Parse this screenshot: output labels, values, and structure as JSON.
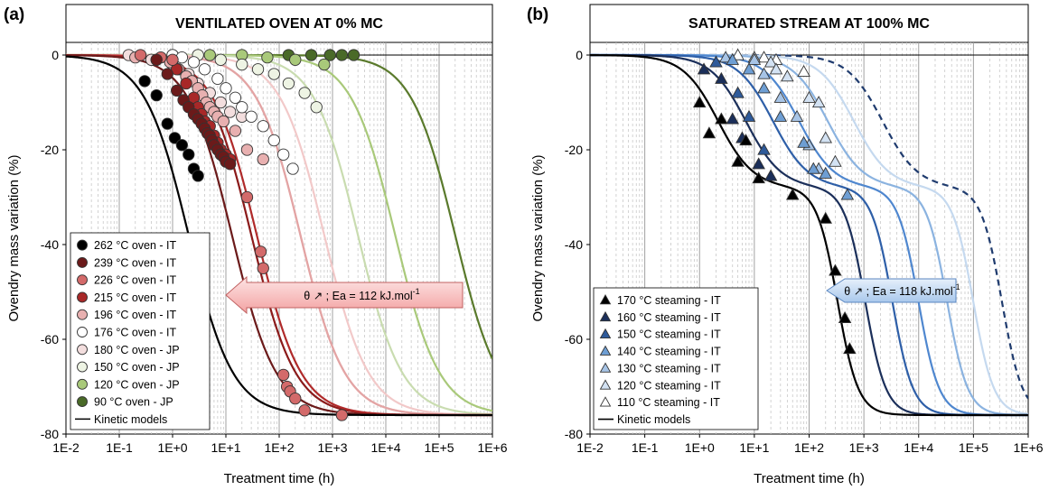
{
  "chart_data": [
    {
      "type": "scatter",
      "panel_label": "(a)",
      "title": "VENTILATED OVEN AT 0% MC",
      "xlabel": "Treatment time (h)",
      "ylabel": "Ovendry mass variation (%)",
      "x_scale": "log",
      "xlim": [
        0.01,
        1000000
      ],
      "ylim": [
        -80,
        0
      ],
      "x_ticks": [
        "1E-2",
        "1E-1",
        "1E+0",
        "1E+1",
        "1E+2",
        "1E+3",
        "1E+4",
        "1E+5",
        "1E+6"
      ],
      "y_ticks": [
        "0",
        "-20",
        "-40",
        "-60",
        "-80"
      ],
      "grid": "vertical minor dashed, major solid",
      "legend_position": "bottom-left",
      "annotation": {
        "text_main": "θ ↗ ; Ea = 112 kJ.mol",
        "text_sup": "-1",
        "direction": "left"
      },
      "models_label": "Kinetic models",
      "series": [
        {
          "name": "262 °C oven - IT",
          "marker": "circle",
          "fill": "#000000",
          "curve_color": "#000000",
          "t50": 2.0,
          "points": [
            [
              0.3,
              -5.5
            ],
            [
              0.5,
              -8.5
            ],
            [
              0.8,
              -14.5
            ],
            [
              1.1,
              -17.5
            ],
            [
              1.5,
              -19
            ],
            [
              2.0,
              -21
            ],
            [
              2.5,
              -24
            ],
            [
              3.0,
              -25.5
            ]
          ]
        },
        {
          "name": "239 °C oven - IT",
          "marker": "circle",
          "fill": "#6b1a1a",
          "curve_color": "#6b1a1a",
          "t50": 13,
          "points": [
            [
              0.5,
              -1
            ],
            [
              0.8,
              -4
            ],
            [
              1.2,
              -7.5
            ],
            [
              1.6,
              -9.5
            ],
            [
              2.0,
              -11
            ],
            [
              2.5,
              -12.5
            ],
            [
              3,
              -13.5
            ],
            [
              3.5,
              -14.5
            ],
            [
              4,
              -15.5
            ],
            [
              4.5,
              -16.5
            ],
            [
              5,
              -17
            ],
            [
              5.5,
              -18
            ],
            [
              6,
              -19
            ],
            [
              7,
              -20
            ],
            [
              8,
              -21
            ],
            [
              9,
              -21.5
            ],
            [
              10,
              -22.5
            ],
            [
              12,
              -23
            ]
          ]
        },
        {
          "name": "226 °C oven - IT",
          "marker": "circle",
          "fill": "#d36a6a",
          "curve_color": "#b02a2a",
          "t50": 38,
          "points": [
            [
              0.25,
              0
            ],
            [
              0.6,
              -0.5
            ],
            [
              1.0,
              -1
            ],
            [
              25,
              -30
            ],
            [
              45,
              -41.5
            ],
            [
              50,
              -45
            ],
            [
              120,
              -67.5
            ],
            [
              140,
              -70
            ],
            [
              160,
              -71
            ],
            [
              200,
              -72.5
            ],
            [
              300,
              -75
            ],
            [
              1500,
              -76
            ]
          ]
        },
        {
          "name": "215 °C oven - IT",
          "marker": "circle",
          "fill": "#a82828",
          "curve_color": "#8b1a1a",
          "t50": 30,
          "points": [
            [
              1.2,
              -3
            ],
            [
              1.8,
              -6
            ],
            [
              2.5,
              -9
            ],
            [
              3,
              -11
            ],
            [
              3.5,
              -12.5
            ],
            [
              4,
              -14
            ],
            [
              5,
              -15
            ],
            [
              6,
              -17
            ],
            [
              7,
              -18.5
            ],
            [
              8,
              -20
            ],
            [
              10,
              -21
            ],
            [
              12,
              -22
            ]
          ]
        },
        {
          "name": "196 °C oven - IT",
          "marker": "circle",
          "fill": "#e8b0b0",
          "curve_color": "#e3a4a4",
          "t50": 250,
          "points": [
            [
              0.2,
              -0.5
            ],
            [
              0.5,
              -1
            ],
            [
              0.9,
              -1.5
            ],
            [
              1.3,
              -3
            ],
            [
              1.8,
              -4.5
            ],
            [
              2.3,
              -5.5
            ],
            [
              3,
              -7
            ],
            [
              3.6,
              -8.5
            ],
            [
              4.3,
              -10
            ],
            [
              5,
              -11
            ],
            [
              6,
              -12
            ],
            [
              7,
              -13
            ],
            [
              9,
              -14
            ],
            [
              15,
              -16
            ],
            [
              25,
              -20
            ],
            [
              50,
              -22
            ]
          ]
        },
        {
          "name": "176 °C oven - IT",
          "marker": "circle",
          "fill": "#ffffff",
          "curve_color": "#f2c9c9",
          "t50": 700,
          "points": [
            [
              1,
              0
            ],
            [
              1.5,
              -0.5
            ],
            [
              2.5,
              -1.5
            ],
            [
              4,
              -3
            ],
            [
              7,
              -5
            ],
            [
              10,
              -7
            ],
            [
              15,
              -9
            ],
            [
              20,
              -11
            ],
            [
              30,
              -13
            ],
            [
              50,
              -15
            ],
            [
              80,
              -18
            ],
            [
              120,
              -21
            ],
            [
              180,
              -24
            ]
          ]
        },
        {
          "name": "180 °C oven - JP",
          "marker": "circle",
          "fill": "#f3dede",
          "curve_color": "#eab9b9",
          "t50": 250,
          "points": [
            [
              0.15,
              0
            ],
            [
              0.4,
              -1
            ],
            [
              1,
              -2
            ],
            [
              2,
              -4
            ],
            [
              3,
              -6
            ],
            [
              5,
              -8
            ],
            [
              8,
              -10
            ],
            [
              12,
              -12
            ],
            [
              20,
              -13
            ]
          ]
        },
        {
          "name": "150 °C oven - JP",
          "marker": "circle",
          "fill": "#eef4e4",
          "curve_color": "#c9dcb0",
          "t50": 3000,
          "points": [
            [
              1,
              0
            ],
            [
              3,
              0
            ],
            [
              8,
              -1
            ],
            [
              20,
              -2
            ],
            [
              40,
              -3
            ],
            [
              80,
              -4
            ],
            [
              150,
              -6
            ],
            [
              300,
              -8
            ],
            [
              500,
              -11
            ]
          ]
        },
        {
          "name": "120 °C oven - JP",
          "marker": "circle",
          "fill": "#a9c97a",
          "curve_color": "#a9c97a",
          "t50": 15000,
          "points": [
            [
              5,
              0
            ],
            [
              20,
              0
            ],
            [
              60,
              -0.5
            ],
            [
              200,
              -1
            ],
            [
              700,
              -2
            ]
          ]
        },
        {
          "name": "90 °C oven - JP",
          "marker": "circle",
          "fill": "#4a6a28",
          "curve_color": "#5a7a2c",
          "t50": 200000,
          "points": [
            [
              150,
              0
            ],
            [
              400,
              0
            ],
            [
              900,
              0
            ],
            [
              1500,
              0
            ],
            [
              2500,
              0
            ]
          ]
        }
      ]
    },
    {
      "type": "scatter",
      "panel_label": "(b)",
      "title": "SATURATED STREAM AT 100% MC",
      "xlabel": "Treatment time (h)",
      "ylabel": "Ovendry mass variation (%)",
      "x_scale": "log",
      "xlim": [
        0.01,
        1000000
      ],
      "ylim": [
        -80,
        0
      ],
      "x_ticks": [
        "1E-2",
        "1E-1",
        "1E+0",
        "1E+1",
        "1E+2",
        "1E+3",
        "1E+4",
        "1E+5",
        "1E+6"
      ],
      "y_ticks": [
        "0",
        "-20",
        "-40",
        "-60",
        "-80"
      ],
      "grid": "vertical minor dashed, major solid",
      "legend_position": "bottom-left",
      "annotation": {
        "text_main": "θ ↗ ; Ea = 118 kJ.mol",
        "text_sup": "-1",
        "direction": "left"
      },
      "models_label": "Kinetic models",
      "series": [
        {
          "name": "170 °C steaming - IT",
          "marker": "triangle",
          "fill": "#000000",
          "curve_color": "#000000",
          "t_shift": 1,
          "points": [
            [
              1,
              -10
            ],
            [
              1.5,
              -16.5
            ],
            [
              2.5,
              -13.5
            ],
            [
              5,
              -22.5
            ],
            [
              7,
              -18
            ],
            [
              12,
              -26
            ],
            [
              50,
              -29.5
            ],
            [
              200,
              -34.5
            ],
            [
              300,
              -45.5
            ],
            [
              450,
              -55.5
            ],
            [
              550,
              -62
            ]
          ]
        },
        {
          "name": "160 °C steaming - IT",
          "marker": "triangle",
          "fill": "#1b2f5a",
          "curve_color": "#1b2f5a",
          "t_shift": 3.2,
          "points": [
            [
              1.2,
              -3
            ],
            [
              2.5,
              -5
            ],
            [
              4,
              -13.5
            ],
            [
              6,
              -17.5
            ],
            [
              12,
              -23
            ],
            [
              20,
              -25.5
            ]
          ]
        },
        {
          "name": "150 °C steaming - IT",
          "marker": "triangle",
          "fill": "#2e5a9a",
          "curve_color": "#2e5fa8",
          "t_shift": 10,
          "points": [
            [
              2,
              -1.5
            ],
            [
              5,
              -8
            ],
            [
              8,
              -13
            ],
            [
              15,
              -20
            ]
          ]
        },
        {
          "name": "140 °C steaming - IT",
          "marker": "triangle",
          "fill": "#6e9ed3",
          "curve_color": "#4f87cf",
          "t_shift": 30,
          "points": [
            [
              4,
              -1
            ],
            [
              8,
              -3
            ],
            [
              15,
              -7
            ],
            [
              30,
              -13
            ],
            [
              80,
              -18.5
            ],
            [
              120,
              -24
            ],
            [
              200,
              -25
            ],
            [
              500,
              -29.5
            ]
          ]
        },
        {
          "name": "130 °C steaming - IT",
          "marker": "triangle",
          "fill": "#a7c4e6",
          "curve_color": "#8bb3e0",
          "t_shift": 100,
          "points": [
            [
              3,
              -0.5
            ],
            [
              10,
              -1
            ],
            [
              15,
              -4
            ],
            [
              30,
              -9
            ],
            [
              60,
              -13
            ],
            [
              100,
              -19
            ],
            [
              150,
              -24
            ]
          ]
        },
        {
          "name": "120 °C steaming - IT",
          "marker": "triangle",
          "fill": "#d3e2f3",
          "curve_color": "#c5d9ef",
          "t_shift": 300,
          "points": [
            [
              10,
              -0.5
            ],
            [
              20,
              -1.5
            ],
            [
              25,
              -3
            ],
            [
              40,
              -4.5
            ],
            [
              100,
              -9
            ],
            [
              150,
              -10
            ],
            [
              200,
              -17.5
            ],
            [
              300,
              -22.5
            ]
          ]
        },
        {
          "name": "110 °C steaming - IT",
          "marker": "triangle",
          "fill": "#ffffff",
          "curve_color": "#1f3b6e",
          "dashed": true,
          "t_shift": 1000,
          "points": [
            [
              5,
              0
            ],
            [
              15,
              -0.5
            ],
            [
              25,
              -1
            ],
            [
              80,
              -3.5
            ]
          ]
        }
      ]
    }
  ]
}
